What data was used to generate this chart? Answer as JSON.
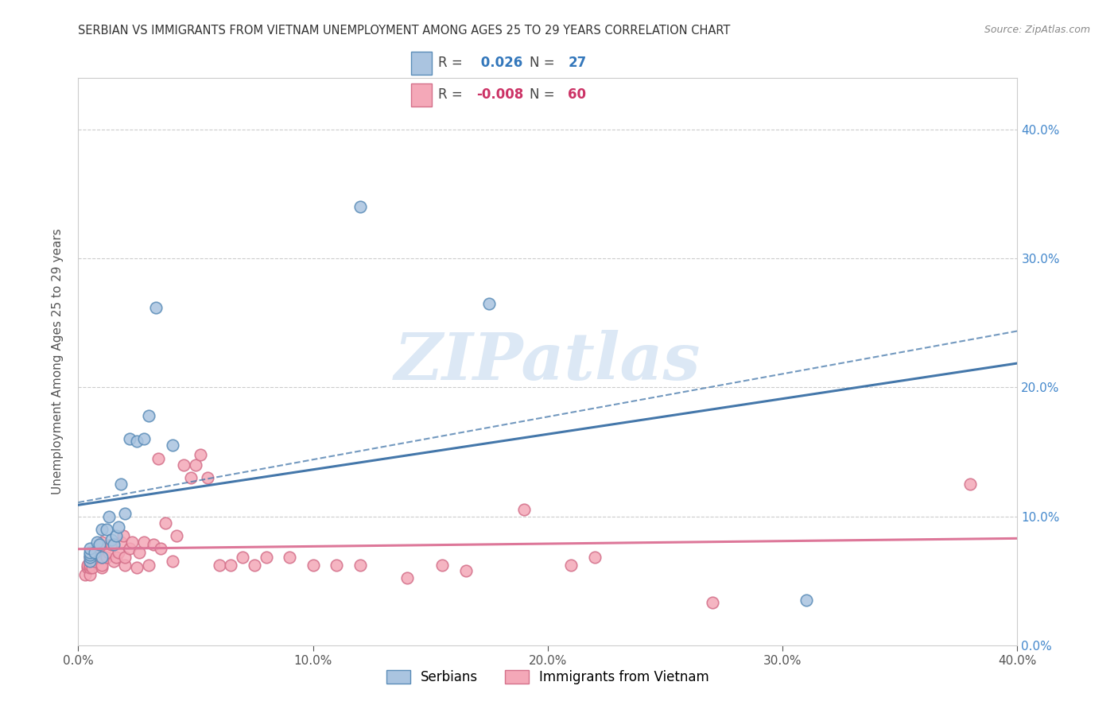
{
  "title": "SERBIAN VS IMMIGRANTS FROM VIETNAM UNEMPLOYMENT AMONG AGES 25 TO 29 YEARS CORRELATION CHART",
  "source": "Source: ZipAtlas.com",
  "ylabel": "Unemployment Among Ages 25 to 29 years",
  "xlim": [
    0.0,
    0.4
  ],
  "ylim": [
    0.0,
    0.44
  ],
  "ytick_vals": [
    0.0,
    0.1,
    0.2,
    0.3,
    0.4
  ],
  "xtick_vals": [
    0.0,
    0.1,
    0.2,
    0.3,
    0.4
  ],
  "grid_color": "#cccccc",
  "background_color": "#ffffff",
  "serbian_color": "#aac4e0",
  "serbian_edge_color": "#5b8db8",
  "vietnam_color": "#f4a8b8",
  "vietnam_edge_color": "#d4708a",
  "serbian_R": 0.026,
  "serbian_N": 27,
  "vietnam_R": -0.008,
  "vietnam_N": 60,
  "serbian_line_color": "#4477aa",
  "vietnam_line_color": "#dd7799",
  "watermark_color": "#dce8f5",
  "serbian_x": [
    0.005,
    0.005,
    0.005,
    0.005,
    0.005,
    0.007,
    0.008,
    0.009,
    0.01,
    0.01,
    0.012,
    0.013,
    0.014,
    0.015,
    0.016,
    0.017,
    0.018,
    0.02,
    0.022,
    0.025,
    0.028,
    0.03,
    0.033,
    0.04,
    0.12,
    0.175,
    0.31
  ],
  "serbian_y": [
    0.065,
    0.068,
    0.07,
    0.072,
    0.075,
    0.072,
    0.08,
    0.078,
    0.068,
    0.09,
    0.09,
    0.1,
    0.082,
    0.078,
    0.085,
    0.092,
    0.125,
    0.102,
    0.16,
    0.158,
    0.16,
    0.178,
    0.262,
    0.155,
    0.34,
    0.265,
    0.035
  ],
  "vietnam_x": [
    0.003,
    0.004,
    0.004,
    0.005,
    0.005,
    0.005,
    0.005,
    0.005,
    0.006,
    0.007,
    0.008,
    0.009,
    0.01,
    0.01,
    0.01,
    0.01,
    0.012,
    0.013,
    0.014,
    0.015,
    0.016,
    0.017,
    0.018,
    0.019,
    0.02,
    0.02,
    0.022,
    0.023,
    0.025,
    0.026,
    0.028,
    0.03,
    0.032,
    0.034,
    0.035,
    0.037,
    0.04,
    0.042,
    0.045,
    0.048,
    0.05,
    0.052,
    0.055,
    0.06,
    0.065,
    0.07,
    0.075,
    0.08,
    0.09,
    0.1,
    0.11,
    0.12,
    0.14,
    0.155,
    0.165,
    0.19,
    0.21,
    0.22,
    0.27,
    0.38
  ],
  "vietnam_y": [
    0.055,
    0.06,
    0.062,
    0.055,
    0.06,
    0.062,
    0.065,
    0.068,
    0.06,
    0.065,
    0.07,
    0.075,
    0.06,
    0.062,
    0.068,
    0.08,
    0.068,
    0.072,
    0.078,
    0.065,
    0.068,
    0.072,
    0.08,
    0.085,
    0.062,
    0.068,
    0.075,
    0.08,
    0.06,
    0.072,
    0.08,
    0.062,
    0.078,
    0.145,
    0.075,
    0.095,
    0.065,
    0.085,
    0.14,
    0.13,
    0.14,
    0.148,
    0.13,
    0.062,
    0.062,
    0.068,
    0.062,
    0.068,
    0.068,
    0.062,
    0.062,
    0.062,
    0.052,
    0.062,
    0.058,
    0.105,
    0.062,
    0.068,
    0.033,
    0.125
  ]
}
